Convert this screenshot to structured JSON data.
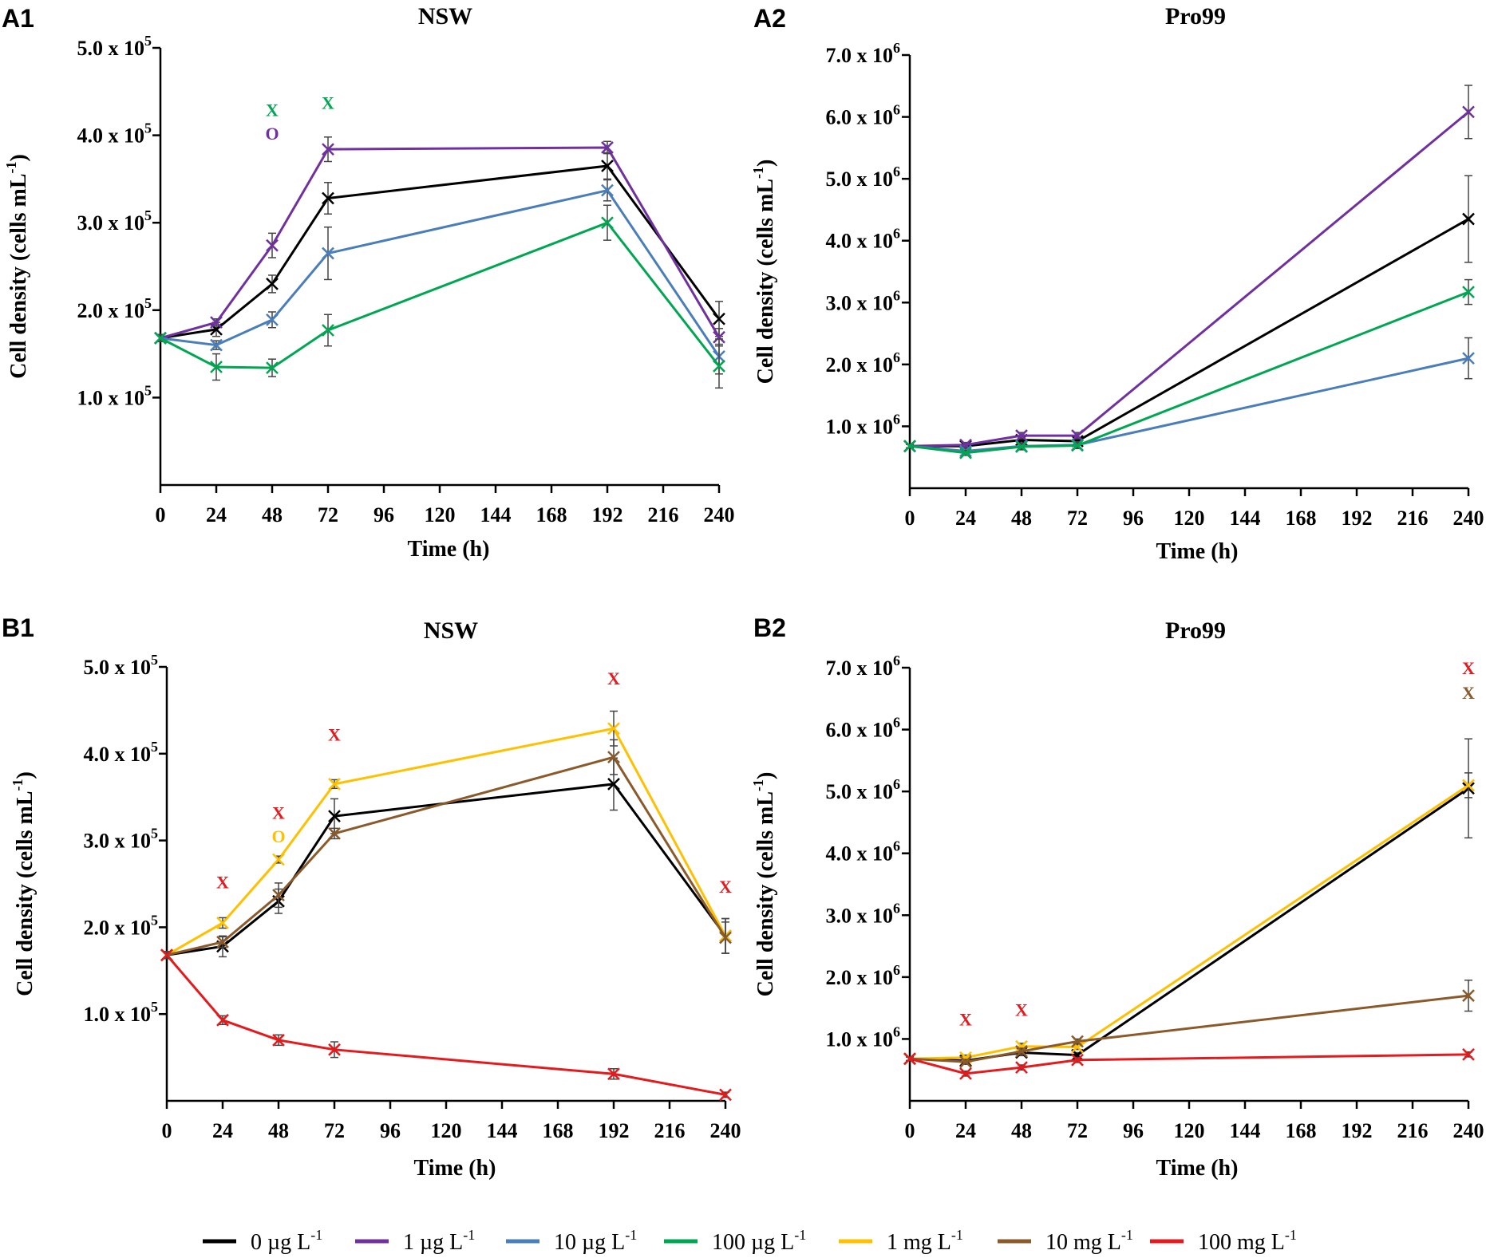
{
  "colors": {
    "0 µg L-1": "#000000",
    "1 µg L-1": "#7030a0",
    "10 µg L-1": "#4a7ebb",
    "100 µg L-1": "#00a651",
    "1 mg L-1": "#ffc000",
    "10 mg L-1": "#8b5a2b",
    "100 mg L-1": "#e41a1c"
  },
  "legend": [
    {
      "key": "0 µg L-1",
      "label": "0 µg L",
      "sup": "-1"
    },
    {
      "key": "1 µg L-1",
      "label": "1 µg L",
      "sup": "-1"
    },
    {
      "key": "10 µg L-1",
      "label": "10 µg L",
      "sup": "-1"
    },
    {
      "key": "100 µg L-1",
      "label": "100 µg L",
      "sup": "-1"
    },
    {
      "key": "1 mg L-1",
      "label": "1 mg L",
      "sup": "-1"
    },
    {
      "key": "10 mg L-1",
      "label": "10 mg L",
      "sup": "-1"
    },
    {
      "key": "100 mg L-1",
      "label": "100 mg L",
      "sup": "-1"
    }
  ],
  "chart_data": [
    {
      "panel": "A1",
      "type": "line",
      "title": "NSW",
      "xlabel": "Time (h)",
      "ylabel": "Cell density (cells mL",
      "ylabel_sup": "-1",
      "ylabel_end": ")",
      "xticks": [
        "0",
        "24",
        "48",
        "72",
        "96",
        "120",
        "144",
        "168",
        "192",
        "216",
        "240"
      ],
      "xlim": [
        0,
        240
      ],
      "ylim": [
        0,
        500000
      ],
      "yticks": [
        {
          "v": 100000,
          "m": "1.0 x 10",
          "e": "5"
        },
        {
          "v": 200000,
          "m": "2.0 x 10",
          "e": "5"
        },
        {
          "v": 300000,
          "m": "3.0 x 10",
          "e": "5"
        },
        {
          "v": 400000,
          "m": "4.0 x 10",
          "e": "5"
        },
        {
          "v": 500000,
          "m": "5.0 x 10",
          "e": "5"
        }
      ],
      "series": [
        {
          "name": "0 µg L-1",
          "x": [
            0,
            24,
            48,
            72,
            192,
            240
          ],
          "y": [
            168000,
            178000,
            230000,
            328000,
            365000,
            190000
          ],
          "err": [
            4000,
            8000,
            10000,
            18000,
            15000,
            20000
          ]
        },
        {
          "name": "1 µg L-1",
          "x": [
            0,
            24,
            48,
            72,
            192,
            240
          ],
          "y": [
            168000,
            186000,
            274000,
            384000,
            386000,
            169000
          ],
          "err": [
            4000,
            4000,
            14000,
            14000,
            7000,
            10000
          ]
        },
        {
          "name": "10 µg L-1",
          "x": [
            0,
            24,
            48,
            72,
            192,
            240
          ],
          "y": [
            168000,
            160000,
            189000,
            265000,
            337000,
            147000
          ],
          "err": [
            4000,
            5000,
            9000,
            30000,
            12000,
            20000
          ]
        },
        {
          "name": "100 µg L-1",
          "x": [
            0,
            24,
            48,
            72,
            192,
            240
          ],
          "y": [
            168000,
            135000,
            134000,
            177000,
            300000,
            136000
          ],
          "err": [
            4000,
            15000,
            10000,
            18000,
            20000,
            25000
          ]
        }
      ],
      "annotations": [
        {
          "x": 48,
          "y": 422000,
          "text": "X",
          "series": "100 µg L-1"
        },
        {
          "x": 48,
          "y": 395000,
          "text": "O",
          "series": "1 µg L-1"
        },
        {
          "x": 72,
          "y": 430000,
          "text": "X",
          "series": "100 µg L-1"
        }
      ]
    },
    {
      "panel": "A2",
      "type": "line",
      "title": "Pro99",
      "xlabel": "Time (h)",
      "ylabel": "Cell density (cells mL",
      "ylabel_sup": "-1",
      "ylabel_end": ")",
      "xticks": [
        "0",
        "24",
        "48",
        "72",
        "96",
        "120",
        "144",
        "168",
        "192",
        "216",
        "240"
      ],
      "xlim": [
        0,
        240
      ],
      "ylim": [
        0,
        7000000
      ],
      "yticks": [
        {
          "v": 1000000,
          "m": "1.0 x 10",
          "e": "6"
        },
        {
          "v": 2000000,
          "m": "2.0 x 10",
          "e": "6"
        },
        {
          "v": 3000000,
          "m": "3.0 x 10",
          "e": "6"
        },
        {
          "v": 4000000,
          "m": "4.0 x 10",
          "e": "6"
        },
        {
          "v": 5000000,
          "m": "5.0 x 10",
          "e": "6"
        },
        {
          "v": 6000000,
          "m": "6.0 x 10",
          "e": "6"
        },
        {
          "v": 7000000,
          "m": "7.0 x 10",
          "e": "6"
        }
      ],
      "series": [
        {
          "name": "0 µg L-1",
          "x": [
            0,
            24,
            48,
            72,
            240
          ],
          "y": [
            680000,
            680000,
            780000,
            760000,
            4350000
          ],
          "err": [
            30000,
            40000,
            50000,
            50000,
            700000
          ]
        },
        {
          "name": "1 µg L-1",
          "x": [
            0,
            24,
            48,
            72,
            240
          ],
          "y": [
            680000,
            700000,
            850000,
            850000,
            6080000
          ],
          "err": [
            30000,
            40000,
            50000,
            50000,
            430000
          ]
        },
        {
          "name": "10 µg L-1",
          "x": [
            0,
            24,
            48,
            72,
            240
          ],
          "y": [
            680000,
            600000,
            680000,
            700000,
            2100000
          ],
          "err": [
            30000,
            40000,
            50000,
            50000,
            330000
          ]
        },
        {
          "name": "100 µg L-1",
          "x": [
            0,
            24,
            48,
            72,
            240
          ],
          "y": [
            680000,
            570000,
            670000,
            690000,
            3170000
          ],
          "err": [
            30000,
            40000,
            50000,
            50000,
            200000
          ]
        }
      ],
      "annotations": []
    },
    {
      "panel": "B1",
      "type": "line",
      "title": "NSW",
      "xlabel": "Time (h)",
      "ylabel": "Cell density (cells mL",
      "ylabel_sup": "-1",
      "ylabel_end": ")",
      "xticks": [
        "0",
        "24",
        "48",
        "72",
        "96",
        "120",
        "144",
        "168",
        "192",
        "216",
        "240"
      ],
      "xlim": [
        0,
        240
      ],
      "ylim": [
        0,
        500000
      ],
      "yticks": [
        {
          "v": 100000,
          "m": "1.0 x 10",
          "e": "5"
        },
        {
          "v": 200000,
          "m": "2.0 x 10",
          "e": "5"
        },
        {
          "v": 300000,
          "m": "3.0 x 10",
          "e": "5"
        },
        {
          "v": 400000,
          "m": "4.0 x 10",
          "e": "5"
        },
        {
          "v": 500000,
          "m": "5.0 x 10",
          "e": "5"
        }
      ],
      "series": [
        {
          "name": "0 µg L-1",
          "x": [
            0,
            24,
            48,
            72,
            192,
            240
          ],
          "y": [
            168000,
            178000,
            230000,
            328000,
            365000,
            190000
          ],
          "err": [
            4000,
            12000,
            14000,
            20000,
            30000,
            20000
          ]
        },
        {
          "name": "1 mg L-1",
          "x": [
            0,
            24,
            48,
            72,
            192,
            240
          ],
          "y": [
            168000,
            205000,
            278000,
            365000,
            429000,
            190000
          ],
          "err": [
            4000,
            6000,
            4000,
            5000,
            20000,
            20000
          ]
        },
        {
          "name": "10 mg L-1",
          "x": [
            0,
            24,
            48,
            72,
            192,
            240
          ],
          "y": [
            168000,
            183000,
            237000,
            308000,
            396000,
            188000
          ],
          "err": [
            4000,
            6000,
            14000,
            6000,
            20000,
            18000
          ]
        },
        {
          "name": "100 mg L-1",
          "x": [
            0,
            24,
            48,
            72,
            192,
            240
          ],
          "y": [
            168000,
            93000,
            70000,
            59000,
            31000,
            7000
          ],
          "err": [
            4000,
            5000,
            6000,
            9000,
            6000,
            3000
          ]
        }
      ],
      "annotations": [
        {
          "x": 24,
          "y": 245000,
          "text": "X",
          "series": "100 mg L-1"
        },
        {
          "x": 48,
          "y": 325000,
          "text": "X",
          "series": "100 mg L-1"
        },
        {
          "x": 48,
          "y": 298000,
          "text": "O",
          "series": "1 mg L-1"
        },
        {
          "x": 72,
          "y": 415000,
          "text": "X",
          "series": "100 mg L-1"
        },
        {
          "x": 192,
          "y": 480000,
          "text": "X",
          "series": "100 mg L-1"
        },
        {
          "x": 240,
          "y": 240000,
          "text": "X",
          "series": "100 mg L-1"
        }
      ]
    },
    {
      "panel": "B2",
      "type": "line",
      "title": "Pro99",
      "xlabel": "Time (h)",
      "ylabel": "Cell density (cells mL",
      "ylabel_sup": "-1",
      "ylabel_end": ")",
      "xticks": [
        "0",
        "24",
        "48",
        "72",
        "96",
        "120",
        "144",
        "168",
        "192",
        "216",
        "240"
      ],
      "xlim": [
        0,
        240
      ],
      "ylim": [
        0,
        7000000
      ],
      "yticks": [
        {
          "v": 1000000,
          "m": "1.0 x 10",
          "e": "6"
        },
        {
          "v": 2000000,
          "m": "2.0 x 10",
          "e": "6"
        },
        {
          "v": 3000000,
          "m": "3.0 x 10",
          "e": "6"
        },
        {
          "v": 4000000,
          "m": "4.0 x 10",
          "e": "6"
        },
        {
          "v": 5000000,
          "m": "5.0 x 10",
          "e": "6"
        },
        {
          "v": 6000000,
          "m": "6.0 x 10",
          "e": "6"
        },
        {
          "v": 7000000,
          "m": "7.0 x 10",
          "e": "6"
        }
      ],
      "series": [
        {
          "name": "0 µg L-1",
          "x": [
            0,
            24,
            48,
            72,
            240
          ],
          "y": [
            680000,
            650000,
            780000,
            740000,
            5050000
          ],
          "err": [
            30000,
            40000,
            50000,
            40000,
            800000
          ]
        },
        {
          "name": "1 mg L-1",
          "x": [
            0,
            24,
            48,
            72,
            240
          ],
          "y": [
            680000,
            700000,
            880000,
            870000,
            5100000
          ],
          "err": [
            30000,
            40000,
            50000,
            40000,
            200000
          ]
        },
        {
          "name": "10 mg L-1",
          "x": [
            0,
            24,
            48,
            72,
            240
          ],
          "y": [
            680000,
            630000,
            800000,
            960000,
            1700000
          ],
          "err": [
            30000,
            40000,
            50000,
            40000,
            250000
          ]
        },
        {
          "name": "100 mg L-1",
          "x": [
            0,
            24,
            48,
            72,
            240
          ],
          "y": [
            680000,
            440000,
            540000,
            660000,
            750000
          ],
          "err": [
            30000,
            40000,
            40000,
            40000,
            40000
          ]
        }
      ],
      "annotations": [
        {
          "x": 24,
          "y": 1220000,
          "text": "X",
          "series": "100 mg L-1"
        },
        {
          "x": 48,
          "y": 1370000,
          "text": "X",
          "series": "100 mg L-1"
        },
        {
          "x": 240,
          "y": 6900000,
          "text": "X",
          "series": "100 mg L-1"
        },
        {
          "x": 240,
          "y": 6500000,
          "text": "X",
          "series": "10 mg L-1"
        }
      ]
    }
  ]
}
